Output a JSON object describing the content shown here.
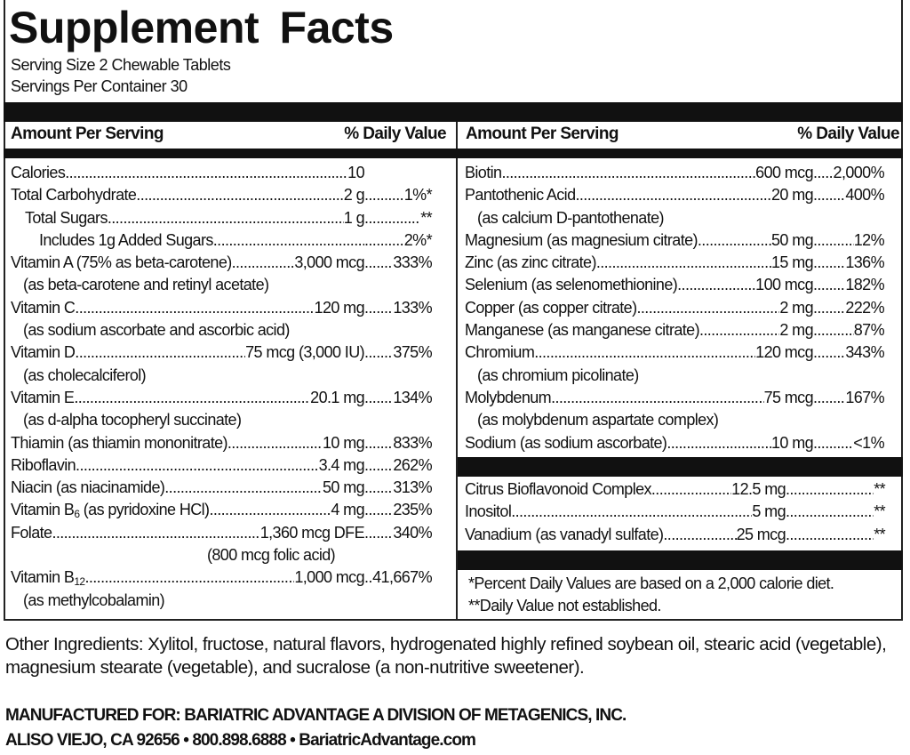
{
  "title": "Supplement Facts",
  "serving_size": "Serving Size 2 Chewable Tablets",
  "servings_per_container": "Servings Per Container 30",
  "header": {
    "amount": "Amount Per Serving",
    "dv": "% Daily Value"
  },
  "left_rows": [
    {
      "name": "Calories",
      "amount": "10",
      "dv": ""
    },
    {
      "name": "Total Carbohydrate",
      "amount": "2 g",
      "dv": "1%*"
    },
    {
      "name": "Total Sugars",
      "amount": "1 g",
      "dv": "**",
      "indent": 1
    },
    {
      "name": "Includes 1g Added Sugars",
      "amount": "",
      "dv": "2%*",
      "indent": 2
    },
    {
      "name": "Vitamin A (75% as beta-carotene)",
      "amount": "3,000 mcg",
      "dv": "333%"
    },
    {
      "note": "(as beta-carotene and retinyl acetate)"
    },
    {
      "name": "Vitamin C",
      "amount": "120 mg",
      "dv": "133%"
    },
    {
      "note": "(as sodium ascorbate and ascorbic acid)"
    },
    {
      "name": "Vitamin D",
      "amount": "75 mcg (3,000 IU)",
      "dv": "375%"
    },
    {
      "note": "(as cholecalciferol)"
    },
    {
      "name": "Vitamin E",
      "amount": "20.1 mg",
      "dv": "134%"
    },
    {
      "note": "(as d-alpha tocopheryl succinate)"
    },
    {
      "name": "Thiamin (as thiamin mononitrate)",
      "amount": "10 mg",
      "dv": "833%"
    },
    {
      "name": "Riboflavin",
      "amount": "3.4 mg",
      "dv": "262%"
    },
    {
      "name": "Niacin (as niacinamide)",
      "amount": "50 mg",
      "dv": "313%"
    },
    {
      "name": "Vitamin B",
      "sub": "6",
      "name_rest": " (as pyridoxine HCl)",
      "amount": "4 mg",
      "dv": "235%"
    },
    {
      "name": "Folate",
      "amount": "1,360 mcg DFE",
      "dv": "340%"
    },
    {
      "note": "(800 mcg folic acid)",
      "align": "amount"
    },
    {
      "name": "Vitamin B",
      "sub": "12",
      "amount": "1,000 mcg",
      "dv": "41,667%"
    },
    {
      "note": "(as methylcobalamin)"
    }
  ],
  "right_rows": [
    {
      "name": "Biotin",
      "amount": "600 mcg",
      "dv": "2,000%"
    },
    {
      "name": "Pantothenic Acid",
      "amount": "20 mg",
      "dv": "400%"
    },
    {
      "note": "(as calcium D-pantothenate)"
    },
    {
      "name": "Magnesium (as magnesium citrate)",
      "amount": "50 mg",
      "dv": "12%"
    },
    {
      "name": "Zinc (as zinc citrate)",
      "amount": "15 mg",
      "dv": "136%"
    },
    {
      "name": "Selenium (as selenomethionine)",
      "amount": "100 mcg",
      "dv": "182%"
    },
    {
      "name": "Copper (as copper citrate)",
      "amount": "2 mg",
      "dv": "222%"
    },
    {
      "name": "Manganese (as manganese citrate)",
      "amount": "2 mg",
      "dv": "87%"
    },
    {
      "name": "Chromium",
      "amount": "120 mcg",
      "dv": "343%"
    },
    {
      "note": "(as chromium picolinate)"
    },
    {
      "name": "Molybdenum",
      "amount": "75 mcg",
      "dv": "167%"
    },
    {
      "note": "(as molybdenum aspartate complex)"
    },
    {
      "name": "Sodium (as sodium ascorbate)",
      "amount": "10 mg",
      "dv": "<1%"
    }
  ],
  "other_rows": [
    {
      "name": "Citrus Bioflavonoid Complex",
      "amount": "12.5 mg",
      "dv": "**"
    },
    {
      "name": "Inositol",
      "amount": "5 mg",
      "dv": "**"
    },
    {
      "name": "Vanadium (as vanadyl sulfate)",
      "amount": "25 mcg",
      "dv": "**"
    }
  ],
  "footnotes": [
    "*Percent Daily Values are based on a 2,000 calorie diet.",
    "**Daily Value not established."
  ],
  "other_ingredients": "Other Ingredients: Xylitol, fructose, natural flavors, hydrogenated highly refined soybean oil, stearic acid (vegetable), magnesium stearate (vegetable), and sucralose (a non-nutritive sweetener).",
  "manufacturer": [
    "MANUFACTURED FOR: BARIATRIC ADVANTAGE A DIVISION OF METAGENICS, INC.",
    "ALISO VIEJO, CA 92656 • 800.898.6888 • BariatricAdvantage.com"
  ]
}
